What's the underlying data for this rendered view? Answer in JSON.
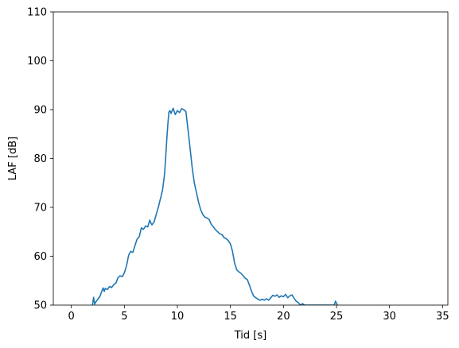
{
  "chart_data": {
    "type": "line",
    "title": "",
    "xlabel": "Tid [s]",
    "ylabel": "LAF [dB]",
    "xlim": [
      -1.7,
      35.5
    ],
    "ylim": [
      50,
      110
    ],
    "xticks": [
      0,
      5,
      10,
      15,
      20,
      25,
      30,
      35
    ],
    "yticks": [
      50,
      60,
      70,
      80,
      90,
      100,
      110
    ],
    "grid": false,
    "legend": "none",
    "line_color": "#1f77b4",
    "series": [
      {
        "x": [
          2.0,
          2.1,
          2.2,
          2.3,
          2.5,
          2.7,
          2.9,
          3.0,
          3.1,
          3.2,
          3.4,
          3.6,
          3.8,
          4.0,
          4.2,
          4.4,
          4.6,
          4.8,
          5.0,
          5.2,
          5.4,
          5.6,
          5.8,
          6.0,
          6.2,
          6.4,
          6.6,
          6.8,
          7.0,
          7.2,
          7.4,
          7.5,
          7.6,
          7.8,
          8.0,
          8.2,
          8.4,
          8.6,
          8.8,
          9.0,
          9.1,
          9.2,
          9.3,
          9.4,
          9.6,
          9.8,
          10.0,
          10.2,
          10.4,
          10.6,
          10.8,
          11.0,
          11.2,
          11.4,
          11.6,
          11.8,
          12.0,
          12.2,
          12.4,
          12.6,
          12.8,
          13.0,
          13.2,
          13.4,
          13.6,
          13.8,
          14.0,
          14.2,
          14.4,
          14.6,
          14.8,
          15.0,
          15.2,
          15.4,
          15.6,
          15.8,
          16.0,
          16.2,
          16.4,
          16.6,
          16.8,
          17.0,
          17.2,
          17.4,
          17.6,
          17.8,
          18.0,
          18.2,
          18.4,
          18.6,
          18.8,
          19.0,
          19.2,
          19.4,
          19.6,
          19.8,
          20.0,
          20.2,
          20.4,
          20.6,
          20.8,
          21.0,
          21.2,
          21.4,
          21.6,
          21.8,
          22.0,
          24.8,
          24.9,
          25.0,
          25.1
        ],
        "y": [
          50.0,
          51.6,
          50.2,
          50.6,
          51.2,
          51.8,
          53.0,
          53.5,
          52.8,
          53.4,
          53.2,
          53.8,
          53.6,
          54.2,
          54.5,
          55.6,
          56.0,
          55.8,
          56.6,
          58.0,
          60.2,
          61.0,
          60.8,
          62.2,
          63.5,
          64.0,
          65.8,
          65.5,
          66.2,
          66.0,
          67.4,
          66.8,
          66.4,
          67.0,
          68.5,
          70.0,
          71.8,
          73.5,
          77.0,
          84.0,
          87.0,
          89.5,
          89.8,
          89.2,
          90.3,
          89.0,
          89.8,
          89.4,
          90.2,
          90.0,
          89.6,
          86.0,
          82.0,
          78.0,
          75.0,
          73.0,
          71.0,
          69.5,
          68.5,
          68.0,
          67.8,
          67.5,
          66.5,
          66.0,
          65.4,
          65.0,
          64.6,
          64.4,
          63.8,
          63.6,
          63.2,
          62.5,
          61.0,
          58.5,
          57.2,
          56.8,
          56.5,
          56.0,
          55.5,
          55.2,
          54.0,
          52.8,
          51.8,
          51.5,
          51.2,
          51.0,
          51.2,
          51.0,
          51.3,
          51.0,
          51.5,
          52.0,
          51.8,
          52.1,
          51.6,
          51.9,
          51.7,
          52.2,
          51.5,
          51.9,
          52.1,
          51.4,
          50.8,
          50.5,
          50.0,
          50.3,
          50.0,
          50.0,
          50.8,
          50.4,
          50.0
        ]
      }
    ]
  }
}
